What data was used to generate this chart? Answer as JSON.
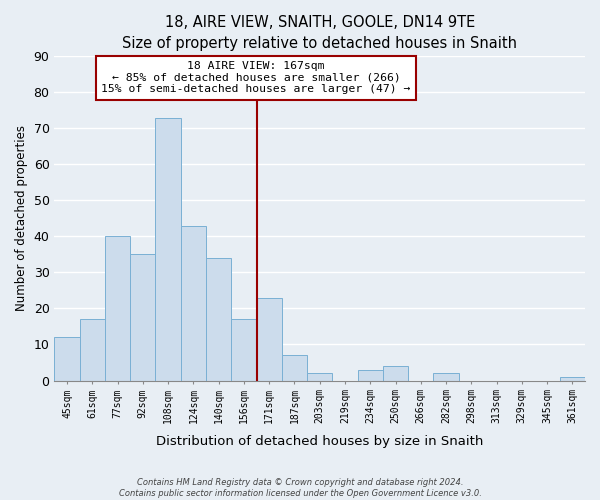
{
  "title": "18, AIRE VIEW, SNAITH, GOOLE, DN14 9TE",
  "subtitle": "Size of property relative to detached houses in Snaith",
  "xlabel": "Distribution of detached houses by size in Snaith",
  "ylabel": "Number of detached properties",
  "bar_color": "#ccdcec",
  "bar_edge_color": "#7ab0d4",
  "background_color": "#e8eef4",
  "plot_bg_color": "#e8eef4",
  "grid_color": "#ffffff",
  "categories": [
    "45sqm",
    "61sqm",
    "77sqm",
    "92sqm",
    "108sqm",
    "124sqm",
    "140sqm",
    "156sqm",
    "171sqm",
    "187sqm",
    "203sqm",
    "219sqm",
    "234sqm",
    "250sqm",
    "266sqm",
    "282sqm",
    "298sqm",
    "313sqm",
    "329sqm",
    "345sqm",
    "361sqm"
  ],
  "values": [
    12,
    17,
    40,
    35,
    73,
    43,
    34,
    17,
    23,
    7,
    2,
    0,
    3,
    4,
    0,
    2,
    0,
    0,
    0,
    0,
    1
  ],
  "ylim": [
    0,
    90
  ],
  "yticks": [
    0,
    10,
    20,
    30,
    40,
    50,
    60,
    70,
    80,
    90
  ],
  "property_line_idx": 8,
  "property_line_color": "#990000",
  "annotation_line1": "18 AIRE VIEW: 167sqm",
  "annotation_line2": "← 85% of detached houses are smaller (266)",
  "annotation_line3": "15% of semi-detached houses are larger (47) →",
  "footer_line1": "Contains HM Land Registry data © Crown copyright and database right 2024.",
  "footer_line2": "Contains public sector information licensed under the Open Government Licence v3.0."
}
